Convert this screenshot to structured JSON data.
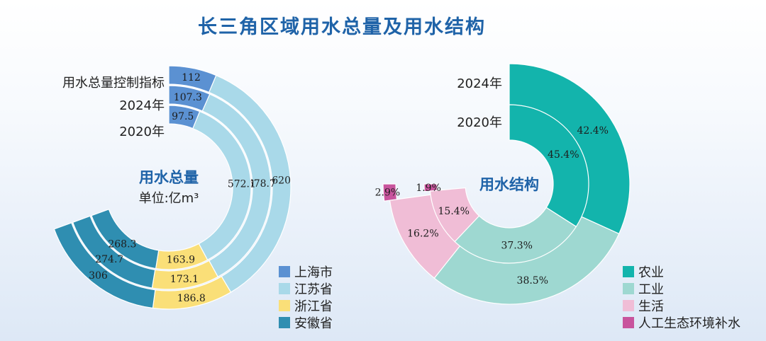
{
  "title": "长三角区域用水总量及用水结构",
  "colors": {
    "background_top": "#ffffff",
    "background_bottom": "#dde8f6",
    "title": "#1f63a8",
    "shanghai": "#5b91d2",
    "jiangsu": "#a9d9e9",
    "zhejiang": "#fadf78",
    "anhui": "#2f8eb1",
    "agriculture": "#13b4ac",
    "industry": "#9ed8d1",
    "domestic": "#f0bdd6",
    "ecological": "#c8549d"
  },
  "chart_data": [
    {
      "type": "pie",
      "variant": "multi-ring donut",
      "center_title": "用水总量",
      "center_unit": "单位:亿m³",
      "rings": [
        "用水总量控制指标",
        "2024年",
        "2020年"
      ],
      "categories": [
        "上海市",
        "江苏省",
        "浙江省",
        "安徽省"
      ],
      "series": [
        {
          "name": "用水总量控制指标",
          "values": [
            112,
            620,
            186.8,
            306
          ]
        },
        {
          "name": "2024年",
          "values": [
            107.3,
            578.7,
            173.1,
            274.7
          ]
        },
        {
          "name": "2020年",
          "values": [
            97.5,
            572.1,
            163.9,
            268.3
          ]
        }
      ],
      "legend": [
        "上海市",
        "江苏省",
        "浙江省",
        "安徽省"
      ],
      "legend_position": "bottom-right"
    },
    {
      "type": "pie",
      "variant": "two-ring donut",
      "center_title": "用水结构",
      "rings": [
        "2024年",
        "2020年"
      ],
      "categories": [
        "农业",
        "工业",
        "生活",
        "人工生态环境补水"
      ],
      "series": [
        {
          "name": "2024年",
          "values": [
            42.4,
            38.5,
            16.2,
            2.9
          ],
          "labels": [
            "42.4%",
            "38.5%",
            "16.2%",
            "2.9%"
          ]
        },
        {
          "name": "2020年",
          "values": [
            45.4,
            37.3,
            15.4,
            1.9
          ],
          "labels": [
            "45.4%",
            "37.3%",
            "15.4%",
            "1.9%"
          ]
        }
      ],
      "legend": [
        "农业",
        "工业",
        "生活",
        "人工生态环境补水"
      ],
      "legend_position": "bottom-right"
    }
  ]
}
